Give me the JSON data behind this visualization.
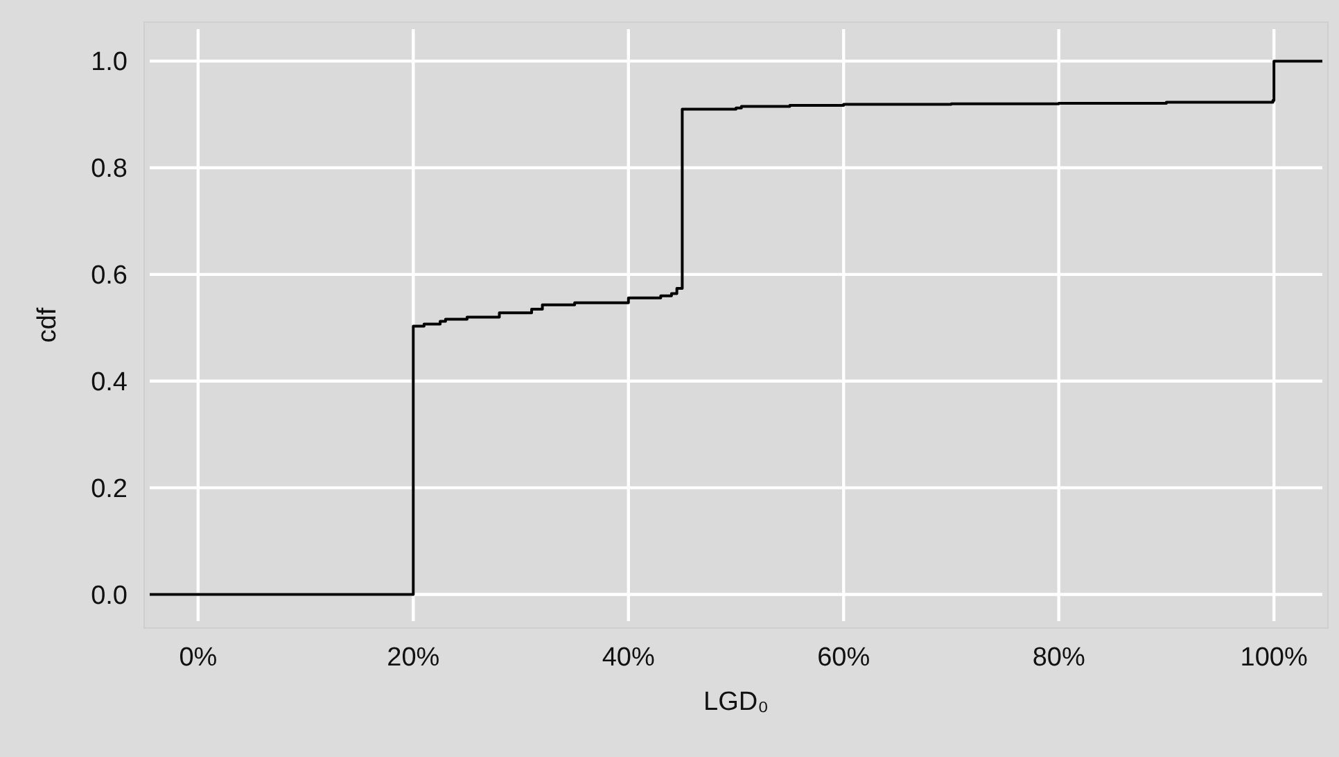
{
  "chart_data": {
    "type": "step",
    "xlabel": "LGD₀",
    "ylabel": "cdf",
    "x": [
      -0.045,
      0.2,
      0.21,
      0.225,
      0.23,
      0.25,
      0.28,
      0.31,
      0.32,
      0.35,
      0.4,
      0.43,
      0.44,
      0.445,
      0.45,
      0.5,
      0.505,
      0.55,
      0.6,
      0.7,
      0.8,
      0.9,
      0.999,
      1.0,
      1.045
    ],
    "values": [
      0,
      0.503,
      0.507,
      0.512,
      0.516,
      0.52,
      0.528,
      0.535,
      0.543,
      0.547,
      0.556,
      0.56,
      0.564,
      0.574,
      0.91,
      0.912,
      0.915,
      0.917,
      0.919,
      0.92,
      0.921,
      0.923,
      0.926,
      1.0,
      1.0
    ],
    "color": "#000000",
    "xlim": [
      -0.045,
      1.045
    ],
    "ylim": [
      -0.05,
      1.06
    ],
    "xticks": [
      {
        "value": 0,
        "label": "0%"
      },
      {
        "value": 0.2,
        "label": "20%"
      },
      {
        "value": 0.4,
        "label": "40%"
      },
      {
        "value": 0.6,
        "label": "60%"
      },
      {
        "value": 0.8,
        "label": "80%"
      },
      {
        "value": 1,
        "label": "100%"
      }
    ],
    "yticks": [
      {
        "value": 0,
        "label": "0.0"
      },
      {
        "value": 0.2,
        "label": "0.2"
      },
      {
        "value": 0.4,
        "label": "0.4"
      },
      {
        "value": 0.6,
        "label": "0.6"
      },
      {
        "value": 0.8,
        "label": "0.8"
      },
      {
        "value": 1,
        "label": "1.0"
      }
    ],
    "grid": true
  }
}
